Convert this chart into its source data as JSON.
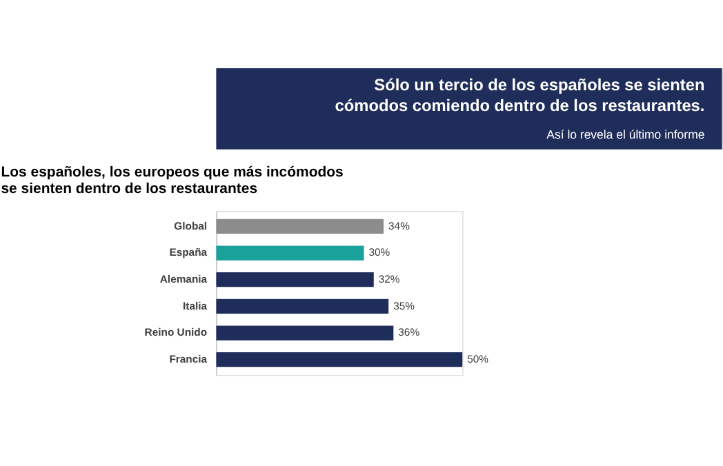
{
  "chart_data": {
    "type": "bar",
    "orientation": "horizontal",
    "title": "Sólo un tercio de los españoles se sienten\ncómodos comiendo dentro de los restaurantes.",
    "subtitle": "Así lo revela el último informe",
    "annotations": [
      "Los españoles, los europeos que más incómodos\nse sienten dentro de los restaurantes"
    ],
    "categories": [
      "Global",
      "España",
      "Alemania",
      "Italia",
      "Reino Unido",
      "Francia"
    ],
    "values": [
      34,
      30,
      32,
      35,
      36,
      50
    ],
    "colors": [
      "#8c8c8c",
      "#1aa19c",
      "#1f2d5a",
      "#1f2d5a",
      "#1f2d5a",
      "#1f2d5a"
    ],
    "value_labels": [
      "34%",
      "30%",
      "32%",
      "35%",
      "36%",
      "50%"
    ]
  }
}
